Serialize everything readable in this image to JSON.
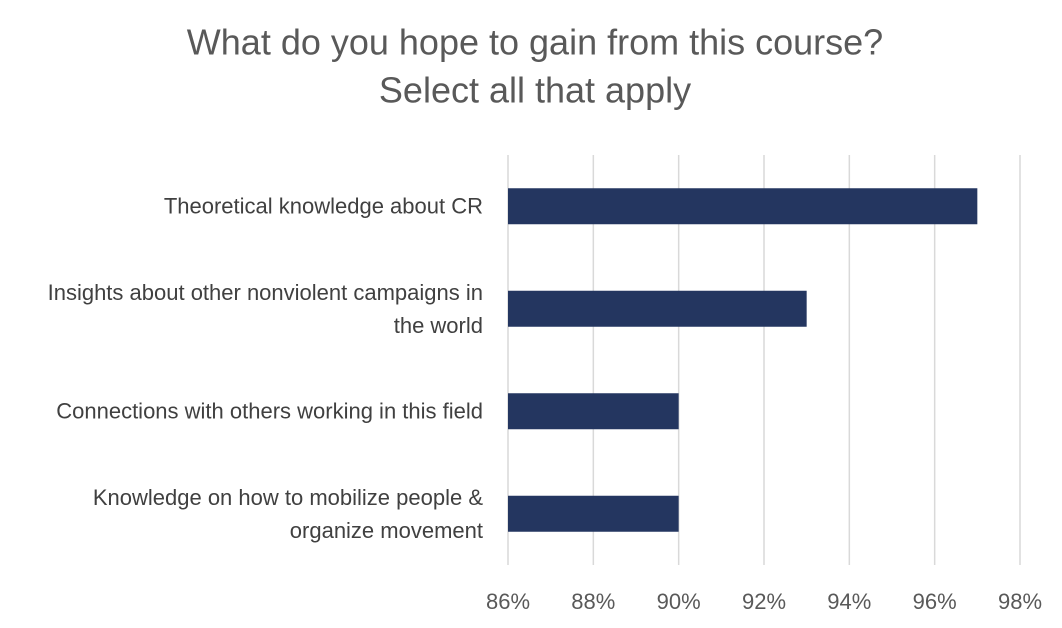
{
  "chart_data": {
    "type": "bar",
    "orientation": "horizontal",
    "title": [
      "What do you hope to gain from this course?",
      "Select all that apply"
    ],
    "categories": [
      "Theoretical knowledge about CR",
      "Insights about other nonviolent campaigns in the world",
      "Connections with others working in this field",
      "Knowledge on how to mobilize people & organize movement"
    ],
    "values": [
      97,
      93,
      90,
      90
    ],
    "color": "#243660",
    "xlim": [
      86,
      98
    ],
    "xticks": [
      {
        "value": 86,
        "label": "86%"
      },
      {
        "value": 88,
        "label": "88%"
      },
      {
        "value": 90,
        "label": "90%"
      },
      {
        "value": 92,
        "label": "92%"
      },
      {
        "value": 94,
        "label": "94%"
      },
      {
        "value": 96,
        "label": "96%"
      },
      {
        "value": 98,
        "label": "98%"
      }
    ],
    "grid": true
  }
}
